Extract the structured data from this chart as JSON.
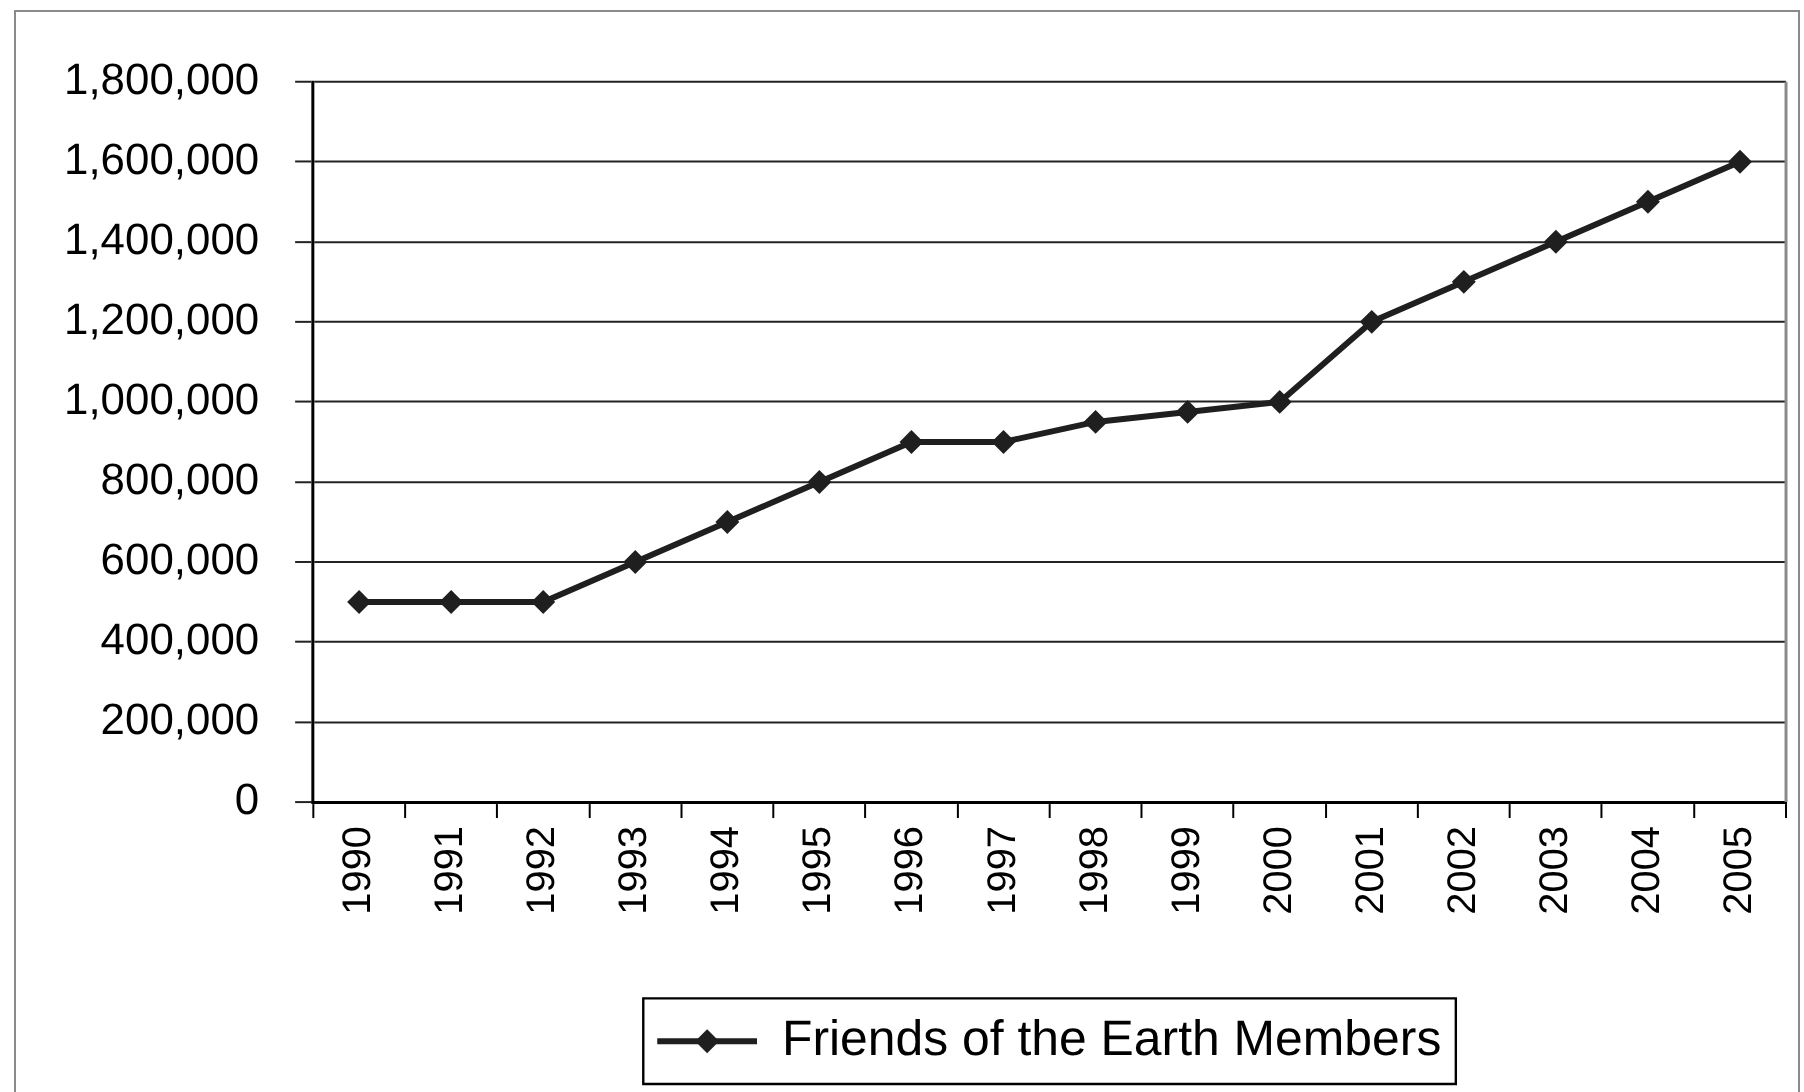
{
  "chart_data": {
    "type": "line",
    "categories": [
      "1990",
      "1991",
      "1992",
      "1993",
      "1994",
      "1995",
      "1996",
      "1997",
      "1998",
      "1999",
      "2000",
      "2001",
      "2002",
      "2003",
      "2004",
      "2005"
    ],
    "series": [
      {
        "name": "Friends of the Earth Members",
        "color": "#1f1f1f",
        "values": [
          500000,
          500000,
          500000,
          600000,
          700000,
          800000,
          900000,
          900000,
          950000,
          975000,
          1000000,
          1200000,
          1300000,
          1400000,
          1500000,
          1600000
        ]
      }
    ],
    "ylim": [
      0,
      1800000
    ],
    "yticks": [
      {
        "value": 0,
        "label": "0"
      },
      {
        "value": 200000,
        "label": "200,000"
      },
      {
        "value": 400000,
        "label": "400,000"
      },
      {
        "value": 600000,
        "label": "600,000"
      },
      {
        "value": 800000,
        "label": "800,000"
      },
      {
        "value": 1000000,
        "label": "1,000,000"
      },
      {
        "value": 1200000,
        "label": "1,200,000"
      },
      {
        "value": 1400000,
        "label": "1,400,000"
      },
      {
        "value": 1600000,
        "label": "1,600,000"
      },
      {
        "value": 1800000,
        "label": "1,800,000"
      }
    ],
    "grid": "y",
    "legend": "bottom",
    "marker": "diamond",
    "line_style": "solid"
  }
}
